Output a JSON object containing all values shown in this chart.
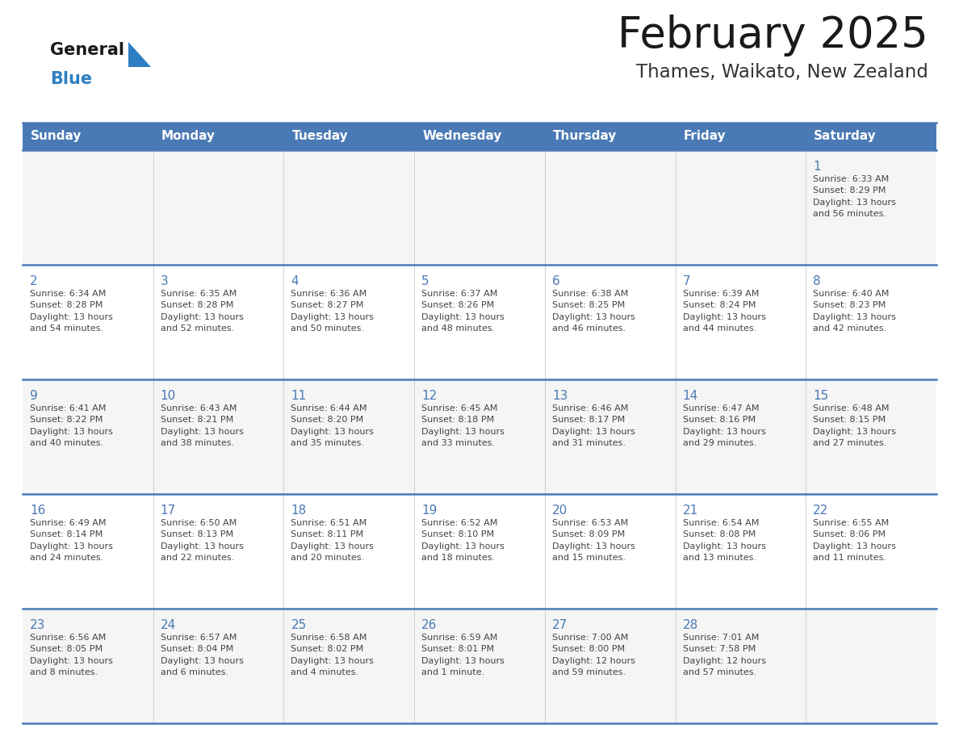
{
  "title": "February 2025",
  "subtitle": "Thames, Waikato, New Zealand",
  "days_of_week": [
    "Sunday",
    "Monday",
    "Tuesday",
    "Wednesday",
    "Thursday",
    "Friday",
    "Saturday"
  ],
  "header_bg": "#4a7ab5",
  "header_text": "#ffffff",
  "row_bg_odd": "#f5f5f5",
  "row_bg_even": "#ffffff",
  "border_color": "#4a7ab5",
  "cell_border_color": "#c0c0c0",
  "day_text_color": "#4a7ab5",
  "info_text_color": "#444444",
  "title_color": "#1a1a1a",
  "subtitle_color": "#333333",
  "logo_general_color": "#1a1a1a",
  "logo_blue_color": "#2e7fc1",
  "weeks": [
    [
      {
        "day": null,
        "info": null
      },
      {
        "day": null,
        "info": null
      },
      {
        "day": null,
        "info": null
      },
      {
        "day": null,
        "info": null
      },
      {
        "day": null,
        "info": null
      },
      {
        "day": null,
        "info": null
      },
      {
        "day": 1,
        "info": "Sunrise: 6:33 AM\nSunset: 8:29 PM\nDaylight: 13 hours\nand 56 minutes."
      }
    ],
    [
      {
        "day": 2,
        "info": "Sunrise: 6:34 AM\nSunset: 8:28 PM\nDaylight: 13 hours\nand 54 minutes."
      },
      {
        "day": 3,
        "info": "Sunrise: 6:35 AM\nSunset: 8:28 PM\nDaylight: 13 hours\nand 52 minutes."
      },
      {
        "day": 4,
        "info": "Sunrise: 6:36 AM\nSunset: 8:27 PM\nDaylight: 13 hours\nand 50 minutes."
      },
      {
        "day": 5,
        "info": "Sunrise: 6:37 AM\nSunset: 8:26 PM\nDaylight: 13 hours\nand 48 minutes."
      },
      {
        "day": 6,
        "info": "Sunrise: 6:38 AM\nSunset: 8:25 PM\nDaylight: 13 hours\nand 46 minutes."
      },
      {
        "day": 7,
        "info": "Sunrise: 6:39 AM\nSunset: 8:24 PM\nDaylight: 13 hours\nand 44 minutes."
      },
      {
        "day": 8,
        "info": "Sunrise: 6:40 AM\nSunset: 8:23 PM\nDaylight: 13 hours\nand 42 minutes."
      }
    ],
    [
      {
        "day": 9,
        "info": "Sunrise: 6:41 AM\nSunset: 8:22 PM\nDaylight: 13 hours\nand 40 minutes."
      },
      {
        "day": 10,
        "info": "Sunrise: 6:43 AM\nSunset: 8:21 PM\nDaylight: 13 hours\nand 38 minutes."
      },
      {
        "day": 11,
        "info": "Sunrise: 6:44 AM\nSunset: 8:20 PM\nDaylight: 13 hours\nand 35 minutes."
      },
      {
        "day": 12,
        "info": "Sunrise: 6:45 AM\nSunset: 8:18 PM\nDaylight: 13 hours\nand 33 minutes."
      },
      {
        "day": 13,
        "info": "Sunrise: 6:46 AM\nSunset: 8:17 PM\nDaylight: 13 hours\nand 31 minutes."
      },
      {
        "day": 14,
        "info": "Sunrise: 6:47 AM\nSunset: 8:16 PM\nDaylight: 13 hours\nand 29 minutes."
      },
      {
        "day": 15,
        "info": "Sunrise: 6:48 AM\nSunset: 8:15 PM\nDaylight: 13 hours\nand 27 minutes."
      }
    ],
    [
      {
        "day": 16,
        "info": "Sunrise: 6:49 AM\nSunset: 8:14 PM\nDaylight: 13 hours\nand 24 minutes."
      },
      {
        "day": 17,
        "info": "Sunrise: 6:50 AM\nSunset: 8:13 PM\nDaylight: 13 hours\nand 22 minutes."
      },
      {
        "day": 18,
        "info": "Sunrise: 6:51 AM\nSunset: 8:11 PM\nDaylight: 13 hours\nand 20 minutes."
      },
      {
        "day": 19,
        "info": "Sunrise: 6:52 AM\nSunset: 8:10 PM\nDaylight: 13 hours\nand 18 minutes."
      },
      {
        "day": 20,
        "info": "Sunrise: 6:53 AM\nSunset: 8:09 PM\nDaylight: 13 hours\nand 15 minutes."
      },
      {
        "day": 21,
        "info": "Sunrise: 6:54 AM\nSunset: 8:08 PM\nDaylight: 13 hours\nand 13 minutes."
      },
      {
        "day": 22,
        "info": "Sunrise: 6:55 AM\nSunset: 8:06 PM\nDaylight: 13 hours\nand 11 minutes."
      }
    ],
    [
      {
        "day": 23,
        "info": "Sunrise: 6:56 AM\nSunset: 8:05 PM\nDaylight: 13 hours\nand 8 minutes."
      },
      {
        "day": 24,
        "info": "Sunrise: 6:57 AM\nSunset: 8:04 PM\nDaylight: 13 hours\nand 6 minutes."
      },
      {
        "day": 25,
        "info": "Sunrise: 6:58 AM\nSunset: 8:02 PM\nDaylight: 13 hours\nand 4 minutes."
      },
      {
        "day": 26,
        "info": "Sunrise: 6:59 AM\nSunset: 8:01 PM\nDaylight: 13 hours\nand 1 minute."
      },
      {
        "day": 27,
        "info": "Sunrise: 7:00 AM\nSunset: 8:00 PM\nDaylight: 12 hours\nand 59 minutes."
      },
      {
        "day": 28,
        "info": "Sunrise: 7:01 AM\nSunset: 7:58 PM\nDaylight: 12 hours\nand 57 minutes."
      },
      {
        "day": null,
        "info": null
      }
    ]
  ]
}
